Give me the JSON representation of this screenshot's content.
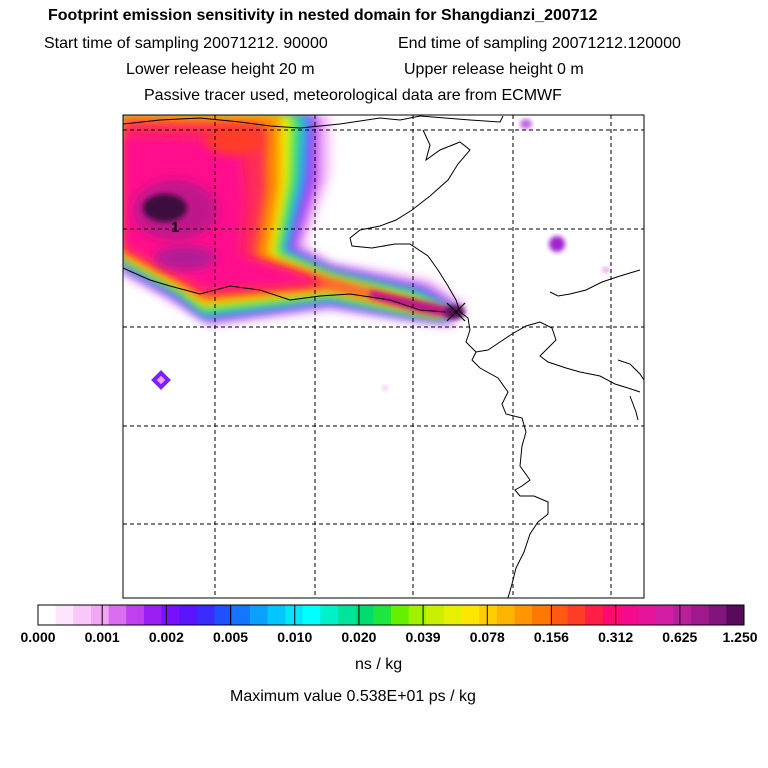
{
  "header": {
    "title": "Footprint emission sensitivity in nested domain for Shangdianzi_200712",
    "start": "Start time of sampling 20071212. 90000",
    "end": "End time of sampling 20071212.120000",
    "lower": "Lower release height   20 m",
    "upper": "Upper release height    0 m",
    "tracer": "Passive tracer used, meteorological data are from ECMWF"
  },
  "map": {
    "contour_label": "1"
  },
  "colorbar": {
    "ticks": [
      "0.000",
      "0.001",
      "0.002",
      "0.005",
      "0.010",
      "0.020",
      "0.039",
      "0.078",
      "0.156",
      "0.312",
      "0.625",
      "1.250"
    ],
    "unit": "ns / kg",
    "maximum": "Maximum value  0.538E+01 ps / kg",
    "colors": [
      "#ffffff",
      "#fde6fd",
      "#f9c8f9",
      "#f2a6f5",
      "#d96ef0",
      "#c040f0",
      "#9b1ef5",
      "#7a10ff",
      "#5a14ff",
      "#3a2cff",
      "#2050ff",
      "#1475ff",
      "#0aa0ff",
      "#00c8ff",
      "#00e6ff",
      "#00ffff",
      "#00f0c8",
      "#00e49b",
      "#00dc6e",
      "#1ee63c",
      "#64f000",
      "#a0f000",
      "#c8f000",
      "#e6f000",
      "#ffe600",
      "#ffcd00",
      "#ffb400",
      "#ff9600",
      "#ff7800",
      "#ff5a14",
      "#ff3c28",
      "#ff1e46",
      "#ff0a6e",
      "#f50a8c",
      "#e6149b",
      "#d21ea5",
      "#b91e9b",
      "#a0198c",
      "#82147d",
      "#5a0a5a"
    ]
  }
}
